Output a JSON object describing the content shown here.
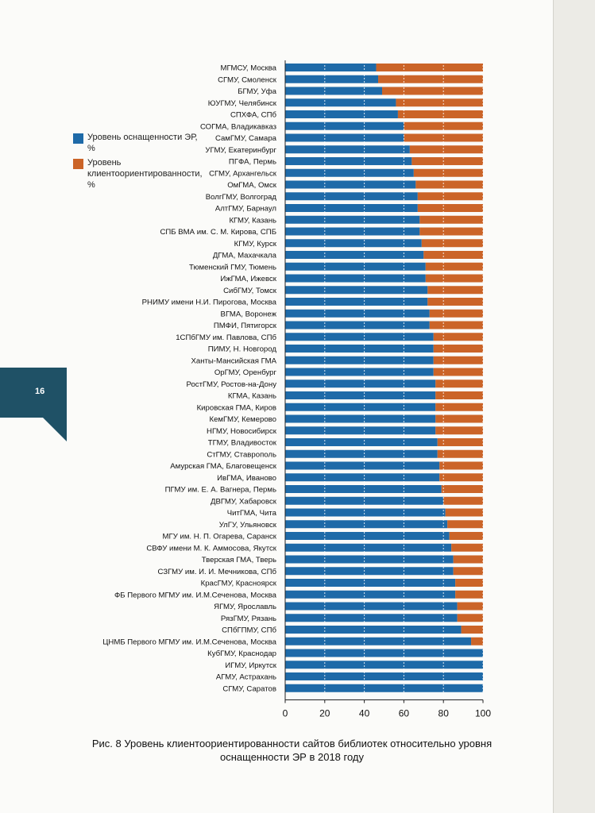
{
  "page": {
    "number": "16"
  },
  "caption": "Рис. 8 Уровень клиентоориентированности сайтов библиотек относительно уровня оснащенности ЭР в 2018 году",
  "colors": {
    "equipment": "#1e6aa8",
    "client": "#cb6428"
  },
  "chart_data": {
    "type": "bar",
    "orientation": "horizontal",
    "stacked": true,
    "xlim": [
      0,
      100
    ],
    "xticks": [
      "0",
      "20",
      "40",
      "60",
      "80",
      "100"
    ],
    "grid": "vertical dotted",
    "legend_position": "left",
    "categories": [
      "МГМСУ, Москва",
      "СГМУ, Смоленск",
      "БГМУ, Уфа",
      "ЮУГМУ, Челябинск",
      "СПХФА, СПб",
      "СОГМА, Владикавказ",
      "СамГМУ, Самара",
      "УГМУ, Екатеринбург",
      "ПГФА, Пермь",
      "СГМУ, Архангельск",
      "ОмГМА, Омск",
      "ВолгГМУ, Волгоград",
      "АлтГМУ, Барнаул",
      "КГМУ, Казань",
      "СПБ ВМА им. С. М. Кирова, СПБ",
      "КГМУ, Курск",
      "ДГМА, Махачкала",
      "Тюменский ГМУ, Тюмень",
      "ИжГМА, Ижевск",
      "СибГМУ, Томск",
      "РНИМУ имени Н.И. Пирогова, Москва",
      "ВГМА, Воронеж",
      "ПМФИ, Пятигорск",
      "1СПбГМУ им. Павлова, СПб",
      "ПИМУ, Н. Новгород",
      "Ханты-Мансийская ГМА",
      "ОрГМУ, Оренбург",
      "РостГМУ, Ростов-на-Дону",
      "КГМА, Казань",
      "Кировская ГМА, Киров",
      "КемГМУ, Кемерово",
      "НГМУ, Новосибирск",
      "ТГМУ, Владивосток",
      "СтГМУ, Ставрополь",
      "Амурская ГМА, Благовещенск",
      "ИвГМА, Иваново",
      "ПГМУ им. Е. А. Вагнера, Пермь",
      "ДВГМУ, Хабаровск",
      "ЧитГМА, Чита",
      "УлГУ, Ульяновск",
      "МГУ им. Н. П. Огарева, Саранск",
      "СВФУ имени М. К. Аммосова, Якутск",
      "Тверская ГМА, Тверь",
      "СЗГМУ им. И. И. Мечникова, СПб",
      "КрасГМУ, Красноярск",
      "ФБ Первого МГМУ им. И.М.Сеченова, Москва",
      "ЯГМУ, Ярославль",
      "РязГМУ, Рязань",
      "СПбГПМУ, СПб",
      "ЦНМБ Первого МГМУ им. И.М.Сеченова, Москва",
      "КубГМУ, Краснодар",
      "ИГМУ, Иркутск",
      "АГМУ, Астрахань",
      "СГМУ, Саратов"
    ],
    "series": [
      {
        "name": "Уровень оснащенности ЭР, %",
        "values": [
          46,
          47,
          49,
          56,
          57,
          60,
          60,
          63,
          64,
          65,
          66,
          67,
          67,
          68,
          68,
          69,
          70,
          71,
          71,
          72,
          72,
          73,
          73,
          75,
          75,
          75,
          75,
          76,
          76,
          76,
          76,
          76,
          77,
          77,
          78,
          78,
          79,
          80,
          81,
          82,
          83,
          84,
          85,
          85,
          86,
          86,
          87,
          87,
          89,
          94,
          100,
          100,
          100,
          100
        ]
      },
      {
        "name": "Уровень клиентоориентированности, %",
        "values": [
          54,
          53,
          51,
          44,
          43,
          40,
          40,
          37,
          36,
          35,
          34,
          33,
          33,
          32,
          32,
          31,
          30,
          29,
          29,
          28,
          28,
          27,
          27,
          25,
          25,
          25,
          25,
          24,
          24,
          24,
          24,
          24,
          23,
          23,
          22,
          22,
          21,
          20,
          19,
          18,
          17,
          16,
          15,
          15,
          14,
          14,
          13,
          13,
          11,
          6,
          0,
          0,
          0,
          0
        ]
      }
    ]
  }
}
